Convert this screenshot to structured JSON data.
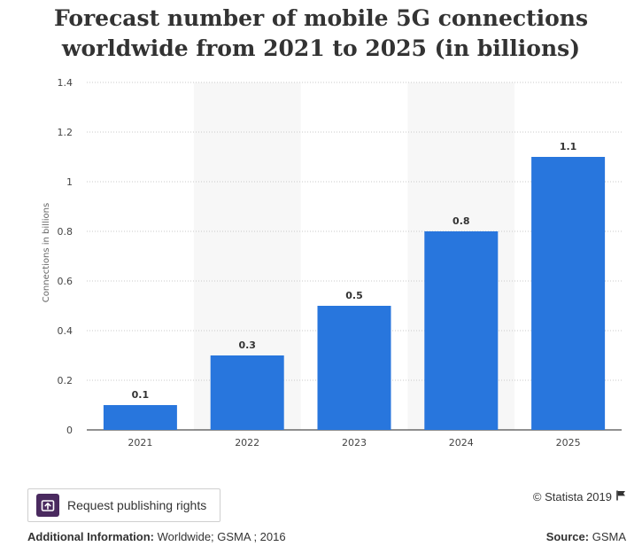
{
  "title": "Forecast number of mobile 5G connections worldwide from 2021 to 2025 (in billions)",
  "chart_data": {
    "type": "bar",
    "title": "Forecast number of mobile 5G connections worldwide from 2021 to 2025 (in billions)",
    "xlabel": "",
    "ylabel": "Connections in billions",
    "categories": [
      "2021",
      "2022",
      "2023",
      "2024",
      "2025"
    ],
    "values": [
      0.1,
      0.3,
      0.5,
      0.8,
      1.1
    ],
    "data_labels": [
      "0.1",
      "0.3",
      "0.5",
      "0.8",
      "1.1"
    ],
    "ylim": [
      0,
      1.4
    ],
    "yticks": [
      0,
      0.2,
      0.4,
      0.6,
      0.8,
      1,
      1.2,
      1.4
    ],
    "ytick_labels": [
      "0",
      "0.2",
      "0.4",
      "0.6",
      "0.8",
      "1",
      "1.2",
      "1.4"
    ],
    "grid": true,
    "bar_color": "#2876dd",
    "band_color": "#f7f7f7"
  },
  "footer": {
    "rights_button": "Request publishing rights",
    "copyright": "© Statista 2019",
    "additional_info_label": "Additional Information:",
    "additional_info_value": " Worldwide; GSMA ; 2016",
    "source_label": "Source:",
    "source_value": " GSMA"
  },
  "icons": {
    "rights": "publish-rights-icon",
    "flag": "flag-icon"
  }
}
